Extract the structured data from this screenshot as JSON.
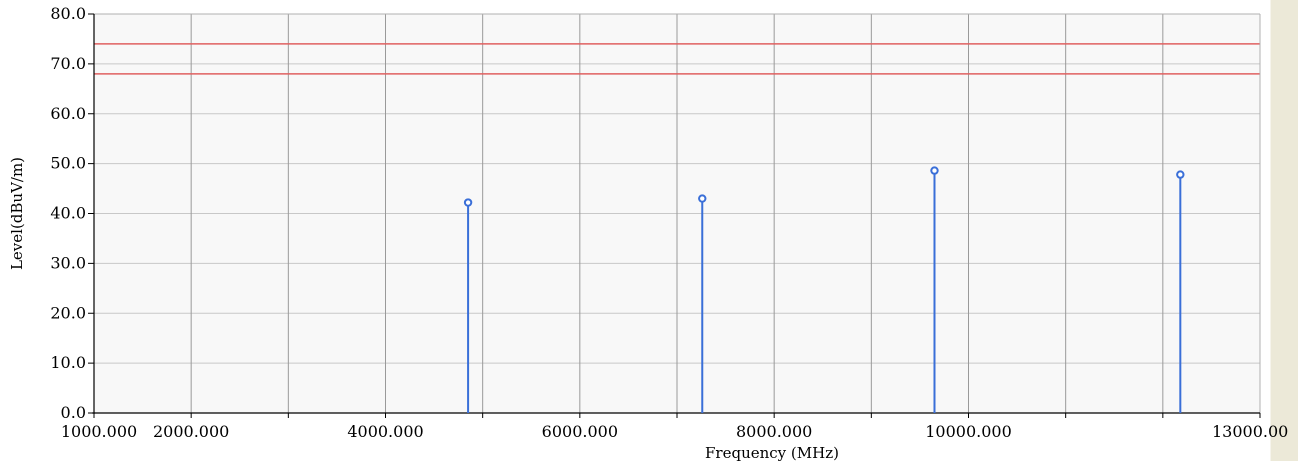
{
  "chart_data": {
    "type": "scatter",
    "title": "",
    "xlabel": "Frequency (MHz)",
    "ylabel": "Level(dBuV/m)",
    "xlim": [
      1000,
      13000
    ],
    "ylim": [
      0,
      80
    ],
    "grid": true,
    "x_ticks": [
      1000,
      2000,
      3000,
      4000,
      5000,
      6000,
      7000,
      8000,
      9000,
      10000,
      11000,
      12000,
      13000
    ],
    "x_tick_labels": [
      "1000.000",
      "2000.000",
      "",
      "4000.000",
      "",
      "6000.000",
      "",
      "8000.000",
      "",
      "10000.000",
      "",
      "",
      "13000.00"
    ],
    "y_ticks": [
      0,
      10,
      20,
      30,
      40,
      50,
      60,
      70,
      80
    ],
    "y_tick_labels": [
      "0.0",
      "10.0",
      "20.0",
      "30.0",
      "40.0",
      "50.0",
      "60.0",
      "70.0",
      "80.0"
    ],
    "limit_lines": [
      74,
      68
    ],
    "series": [
      {
        "x": [
          4850,
          7260,
          9650,
          12180
        ],
        "values": [
          42.2,
          43.0,
          48.6,
          47.8
        ]
      }
    ]
  },
  "colors": {
    "plot_background": "#f8f8f8",
    "grid": "#c8c8c8",
    "major_grid": "#9a9a9a",
    "limit_line": "#e06060",
    "marker": "#3a6fd8",
    "right_panel": "#ece9d8"
  }
}
